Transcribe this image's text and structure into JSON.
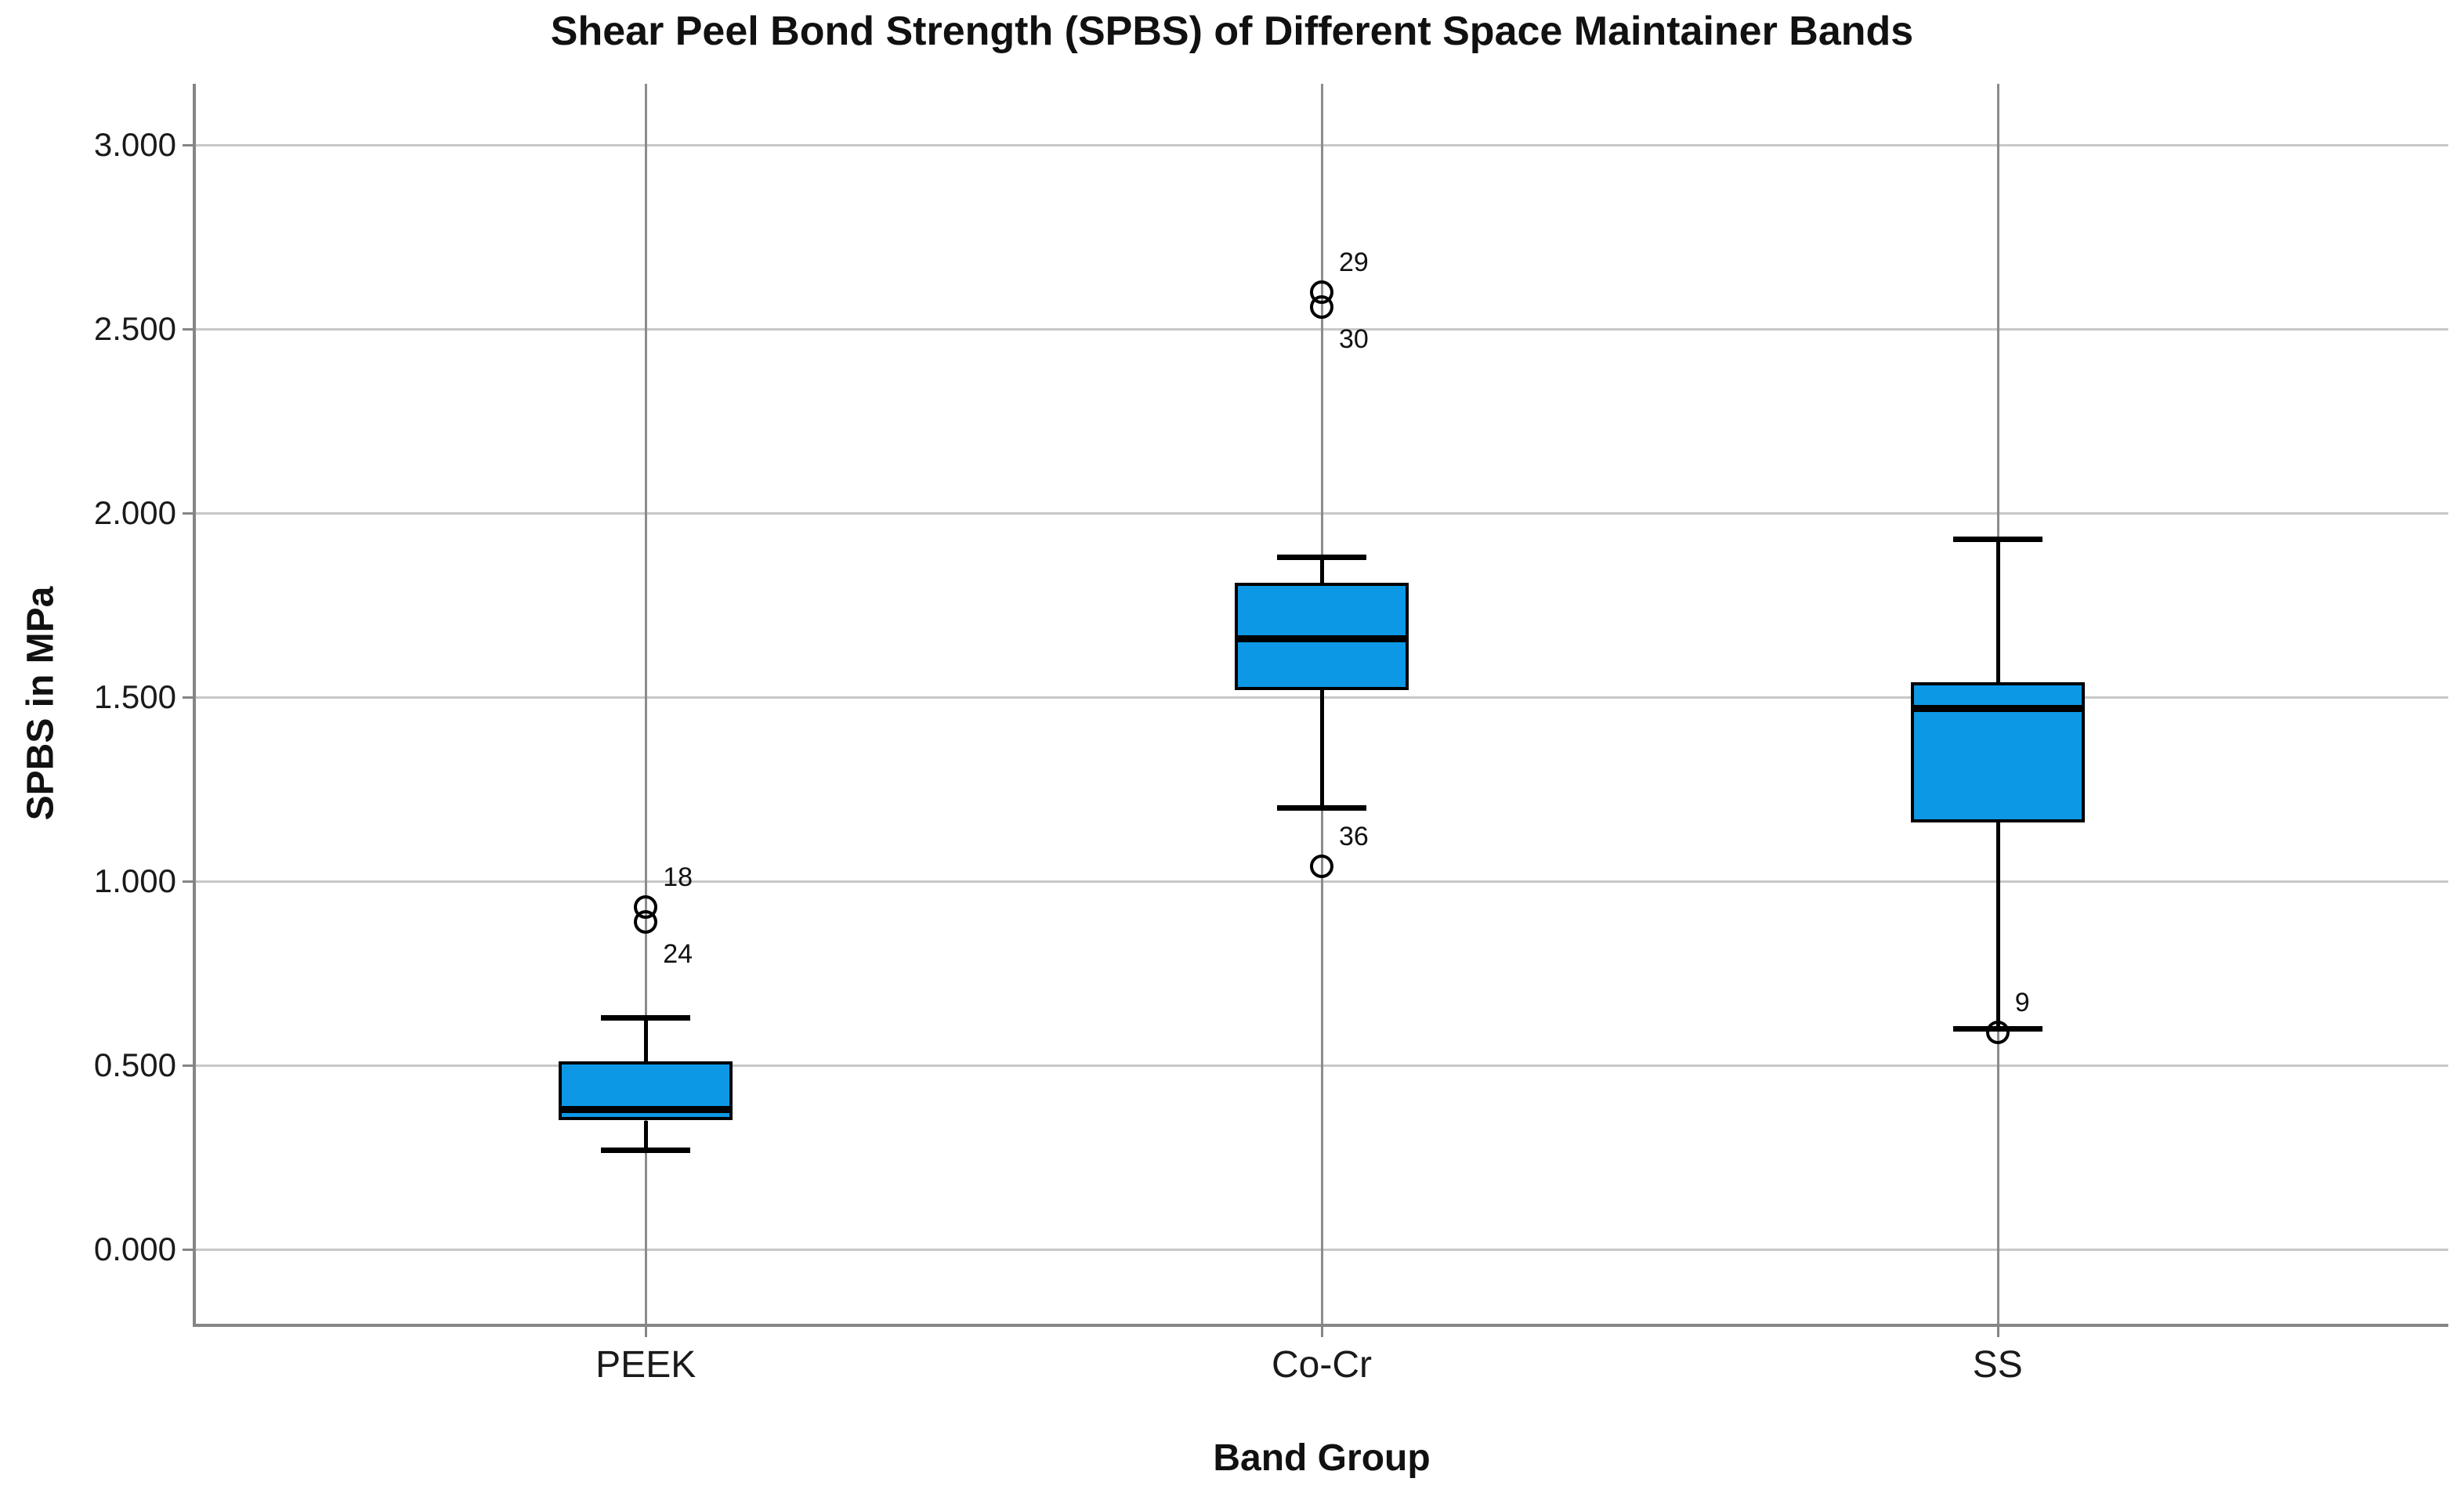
{
  "chart_data": {
    "type": "box",
    "title": "Shear Peel Bond Strength (SPBS) of Different Space Maintainer Bands",
    "xlabel": "Band Group",
    "ylabel": "SPBS in MPa",
    "y_axis": {
      "tick_labels": [
        "0.000",
        "0.500",
        "1.000",
        "1.500",
        "2.000",
        "2.500",
        "3.000"
      ],
      "tick_values": [
        0,
        0.5,
        1.0,
        1.5,
        2.0,
        2.5,
        3.0
      ],
      "range": [
        -0.25,
        3.17
      ],
      "grid": true
    },
    "categories": [
      "PEEK",
      "Co-Cr",
      "SS"
    ],
    "series": [
      {
        "category": "PEEK",
        "whisker_low": 0.27,
        "q1": 0.35,
        "median": 0.38,
        "q3": 0.51,
        "whisker_high": 0.63,
        "outliers": [
          {
            "value": 0.93,
            "label": "18",
            "placement": "above"
          },
          {
            "value": 0.89,
            "label": "24",
            "placement": "below"
          }
        ]
      },
      {
        "category": "Co-Cr",
        "whisker_low": 1.2,
        "q1": 1.52,
        "median": 1.66,
        "q3": 1.81,
        "whisker_high": 1.88,
        "outliers": [
          {
            "value": 2.6,
            "label": "29",
            "placement": "above"
          },
          {
            "value": 2.56,
            "label": "30",
            "placement": "below"
          },
          {
            "value": 1.04,
            "label": "36",
            "placement": "above"
          }
        ]
      },
      {
        "category": "SS",
        "whisker_low": 0.6,
        "q1": 1.16,
        "median": 1.47,
        "q3": 1.54,
        "whisker_high": 1.93,
        "outliers": [
          {
            "value": 0.59,
            "label": "9",
            "placement": "above"
          }
        ]
      }
    ],
    "colors": {
      "box_fill": "#0d98e6",
      "box_stroke": "#000000",
      "median": "#000000",
      "grid": "#c8c8c8",
      "axis": "#858585",
      "category_line": "#8c8c8c",
      "text": "#111111"
    },
    "legend": "none"
  }
}
